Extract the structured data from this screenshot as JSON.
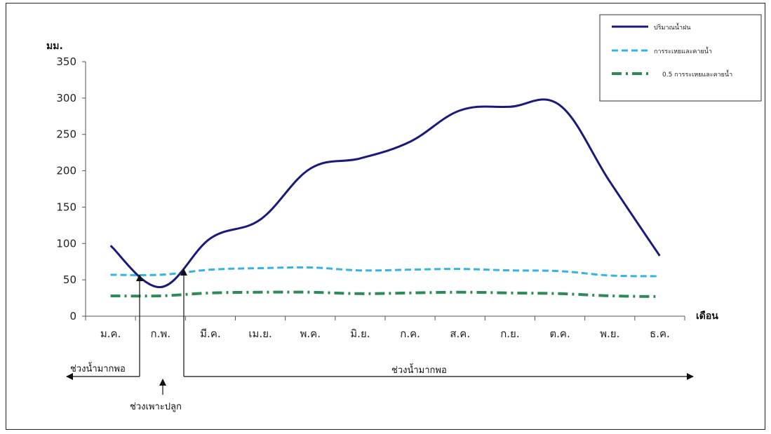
{
  "chart_data": {
    "type": "line",
    "ylabel": "มม.",
    "xlabel": "เดือน",
    "ylim": [
      0,
      350
    ],
    "yticks": [
      0,
      50,
      100,
      150,
      200,
      250,
      300,
      350
    ],
    "categories": [
      "ม.ค.",
      "ก.พ.",
      "มี.ค.",
      "เม.ย.",
      "พ.ค.",
      "มิ.ย.",
      "ก.ค.",
      "ส.ค.",
      "ก.ย.",
      "ต.ค.",
      "พ.ย.",
      "ธ.ค."
    ],
    "grid": false,
    "legend_position": "top-right",
    "series": [
      {
        "name": "ปริมาณน้ำฝน",
        "style": "solid",
        "color": "#1a1a7a",
        "values": [
          97,
          40,
          107,
          133,
          203,
          217,
          240,
          283,
          288,
          290,
          185,
          83
        ]
      },
      {
        "name": "การระเหยและคายน้ำ",
        "style": "dashed",
        "color": "#33b3e6",
        "values": [
          57,
          57,
          64,
          66,
          67,
          63,
          64,
          65,
          63,
          62,
          56,
          55
        ]
      },
      {
        "name": "0.5 การระเหยและคายน้ำ",
        "style": "dashdot",
        "color": "#2e8b57",
        "values": [
          28,
          28,
          32,
          33,
          33,
          31,
          32,
          33,
          32,
          31,
          28,
          27
        ]
      }
    ],
    "annotations": {
      "arrow_label_left": "ช่วงน้ำมากพอ",
      "arrow_label_right": "ช่วงน้ำมากพอ",
      "planting_label": "ช่วงเพาะปลูก"
    }
  }
}
